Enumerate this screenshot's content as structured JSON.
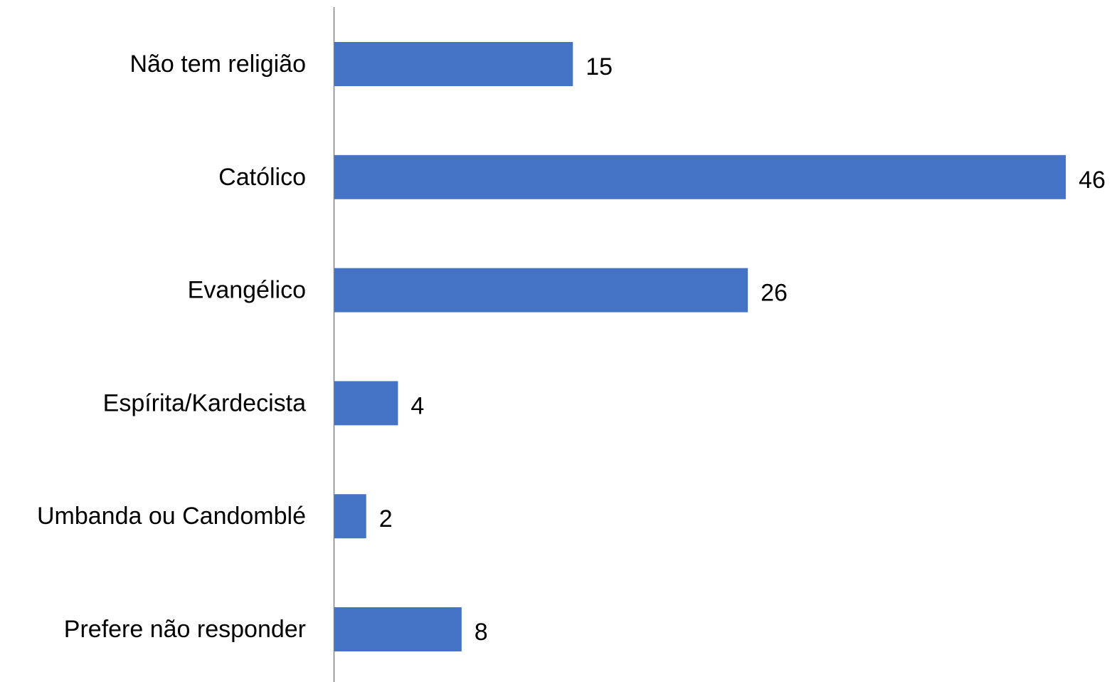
{
  "chart_data": {
    "type": "bar",
    "orientation": "horizontal",
    "categories": [
      "Não tem religião",
      "Católico",
      "Evangélico",
      "Espírita/Kardecista",
      "Umbanda ou Candomblé",
      "Prefere não responder"
    ],
    "values": [
      15,
      46,
      26,
      4,
      2,
      8
    ],
    "xlim": [
      0,
      46
    ],
    "grid": false,
    "data_labels": true,
    "bar_color": "#4472C4",
    "axis_color": "#808080"
  }
}
